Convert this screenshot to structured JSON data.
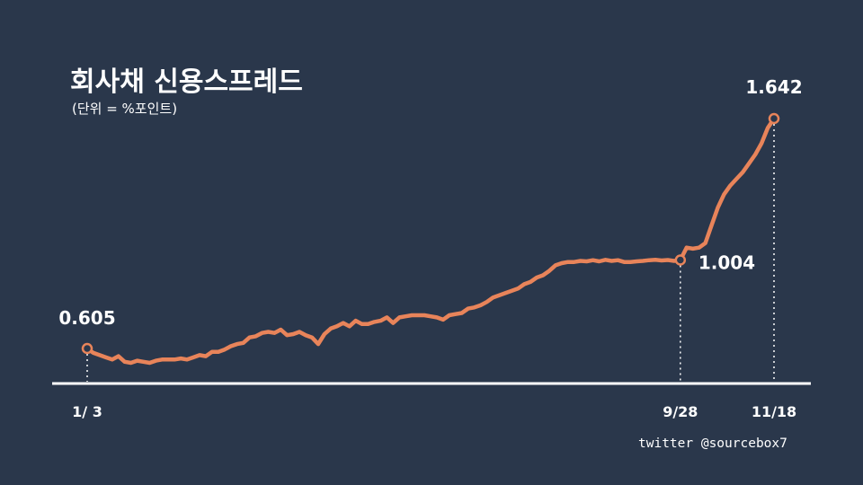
{
  "title": "회사채 신용스프레드",
  "subtitle": "(단위 = %포인트)",
  "credit": "twitter @sourcebox7",
  "colors": {
    "background": "#2a374b",
    "line": "#e8845a",
    "axis": "#ffffff",
    "text": "#ffffff"
  },
  "chart_data": {
    "type": "line",
    "title": "회사채 신용스프레드",
    "subtitle": "(단위 = %포인트)",
    "xlabel": "",
    "ylabel": "",
    "ylim": [
      0.4,
      1.8
    ],
    "x_ticks": [
      "1/ 3",
      "9/28",
      "11/18"
    ],
    "grid": false,
    "series": [
      {
        "values": [
          0.605,
          0.585,
          0.575,
          0.565,
          0.555,
          0.57,
          0.545,
          0.54,
          0.55,
          0.545,
          0.54,
          0.55,
          0.555,
          0.555,
          0.555,
          0.56,
          0.555,
          0.565,
          0.575,
          0.57,
          0.59,
          0.59,
          0.6,
          0.615,
          0.625,
          0.63,
          0.655,
          0.66,
          0.675,
          0.68,
          0.675,
          0.69,
          0.665,
          0.67,
          0.68,
          0.665,
          0.655,
          0.625,
          0.67,
          0.695,
          0.705,
          0.72,
          0.705,
          0.73,
          0.715,
          0.715,
          0.725,
          0.73,
          0.745,
          0.72,
          0.745,
          0.75,
          0.755,
          0.755,
          0.755,
          0.75,
          0.745,
          0.735,
          0.755,
          0.76,
          0.765,
          0.785,
          0.79,
          0.8,
          0.815,
          0.835,
          0.845,
          0.855,
          0.865,
          0.875,
          0.895,
          0.905,
          0.925,
          0.935,
          0.955,
          0.98,
          0.99,
          0.995,
          0.995,
          1.0,
          0.998,
          1.003,
          0.998,
          1.005,
          1.0,
          1.003,
          0.995,
          0.995,
          0.998,
          1.0,
          1.003,
          1.005,
          1.002,
          1.004,
          1.0,
          1.004,
          1.06,
          1.055,
          1.06,
          1.08,
          1.16,
          1.24,
          1.3,
          1.34,
          1.37,
          1.4,
          1.44,
          1.48,
          1.53,
          1.6,
          1.642
        ]
      }
    ],
    "annotations": [
      {
        "label": "0.605",
        "x": "1/ 3",
        "value": 0.605
      },
      {
        "label": "1.004",
        "x": "9/28",
        "value": 1.004
      },
      {
        "label": "1.642",
        "x": "11/18",
        "value": 1.642
      }
    ]
  }
}
